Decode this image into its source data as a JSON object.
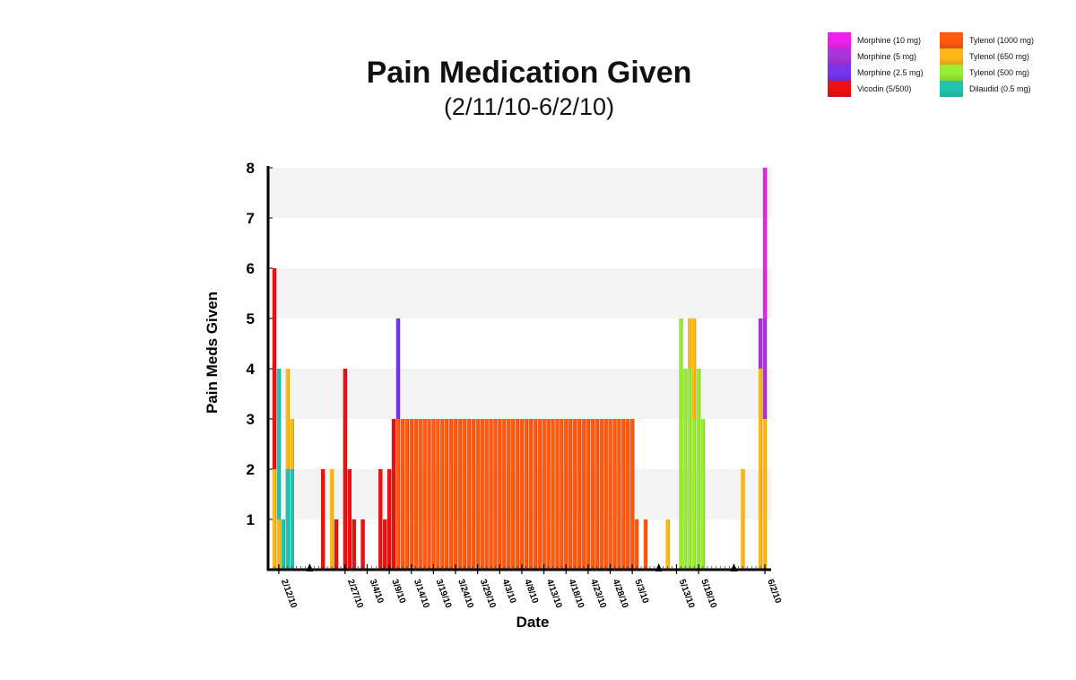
{
  "chart_data": {
    "type": "bar",
    "stacked": true,
    "title": "Pain Medication Given",
    "subtitle": "(2/11/10-6/2/10)",
    "xlabel": "Date",
    "ylabel": "Pain Meds Given",
    "ylim": [
      0,
      8
    ],
    "y_ticks": [
      "1",
      "2",
      "3",
      "4",
      "5",
      "6",
      "7",
      "8"
    ],
    "grid": "alternating horizontal bands",
    "legend_position": "top-right",
    "x_range": [
      "2/11/10",
      "6/2/10"
    ],
    "x_tick_labels": [
      "2/12/10",
      "2/27/10",
      "3/4/10",
      "3/9/10",
      "3/14/10",
      "3/19/10",
      "3/24/10",
      "3/29/10",
      "4/3/10",
      "4/8/10",
      "4/13/10",
      "4/18/10",
      "4/23/10",
      "4/28/10",
      "5/3/10",
      "5/13/10",
      "5/18/10",
      "6/2/10"
    ],
    "axis_break_markers": [
      "2/19/10",
      "5/9/10",
      "5/26/10"
    ],
    "legend": [
      {
        "name": "Morphine (10 mg)",
        "color": "#ee22ee"
      },
      {
        "name": "Morphine (5 mg)",
        "color": "#aa33dd"
      },
      {
        "name": "Morphine (2.5 mg)",
        "color": "#7733ee"
      },
      {
        "name": "Vicodin (5/500)",
        "color": "#ee1111"
      },
      {
        "name": "Tylenol (1000 mg)",
        "color": "#ff5a10"
      },
      {
        "name": "Tylenol (650 mg)",
        "color": "#ffb818"
      },
      {
        "name": "Tylenol (500 mg)",
        "color": "#99ee33"
      },
      {
        "name": "Dilaudid (0.5 mg)",
        "color": "#22c4b0"
      }
    ],
    "bars": [
      {
        "date": "2/11/10",
        "segments": [
          {
            "med": "Tylenol (650 mg)",
            "value": 2
          },
          {
            "med": "Vicodin (5/500)",
            "value": 4
          }
        ]
      },
      {
        "date": "2/12/10",
        "segments": [
          {
            "med": "Tylenol (650 mg)",
            "value": 1
          },
          {
            "med": "Dilaudid (0.5 mg)",
            "value": 3
          }
        ]
      },
      {
        "date": "2/13/10",
        "segments": [
          {
            "med": "Dilaudid (0.5 mg)",
            "value": 1
          }
        ]
      },
      {
        "date": "2/14/10",
        "segments": [
          {
            "med": "Dilaudid (0.5 mg)",
            "value": 2
          },
          {
            "med": "Tylenol (650 mg)",
            "value": 2
          }
        ]
      },
      {
        "date": "2/15/10",
        "segments": [
          {
            "med": "Dilaudid (0.5 mg)",
            "value": 2
          },
          {
            "med": "Tylenol (650 mg)",
            "value": 1
          }
        ]
      },
      {
        "date": "2/22/10",
        "segments": [
          {
            "med": "Vicodin (5/500)",
            "value": 2
          }
        ]
      },
      {
        "date": "2/24/10",
        "segments": [
          {
            "med": "Tylenol (650 mg)",
            "value": 2
          }
        ]
      },
      {
        "date": "2/25/10",
        "segments": [
          {
            "med": "Vicodin (5/500)",
            "value": 1
          }
        ]
      },
      {
        "date": "2/27/10",
        "segments": [
          {
            "med": "Vicodin (5/500)",
            "value": 4
          }
        ]
      },
      {
        "date": "2/28/10",
        "segments": [
          {
            "med": "Vicodin (5/500)",
            "value": 2
          }
        ]
      },
      {
        "date": "3/1/10",
        "segments": [
          {
            "med": "Vicodin (5/500)",
            "value": 1
          }
        ]
      },
      {
        "date": "3/3/10",
        "segments": [
          {
            "med": "Vicodin (5/500)",
            "value": 1
          }
        ]
      },
      {
        "date": "3/7/10",
        "segments": [
          {
            "med": "Vicodin (5/500)",
            "value": 2
          }
        ]
      },
      {
        "date": "3/8/10",
        "segments": [
          {
            "med": "Vicodin (5/500)",
            "value": 1
          }
        ]
      },
      {
        "date": "3/9/10",
        "segments": [
          {
            "med": "Vicodin (5/500)",
            "value": 2
          }
        ]
      },
      {
        "date": "3/10/10",
        "segments": [
          {
            "med": "Vicodin (5/500)",
            "value": 3
          }
        ]
      },
      {
        "date": "3/11/10",
        "segments": [
          {
            "med": "Tylenol (1000 mg)",
            "value": 3
          },
          {
            "med": "Morphine (2.5 mg)",
            "value": 2
          }
        ]
      },
      {
        "date": "3/12/10 – 5/3/10",
        "segments": [
          {
            "med": "Tylenol (1000 mg)",
            "value": 3
          }
        ]
      },
      {
        "date": "5/4/10",
        "segments": [
          {
            "med": "Tylenol (1000 mg)",
            "value": 1
          }
        ]
      },
      {
        "date": "5/6/10",
        "segments": [
          {
            "med": "Tylenol (1000 mg)",
            "value": 1
          }
        ]
      },
      {
        "date": "5/11/10",
        "segments": [
          {
            "med": "Tylenol (650 mg)",
            "value": 1
          }
        ]
      },
      {
        "date": "5/14/10",
        "segments": [
          {
            "med": "Tylenol (500 mg)",
            "value": 5
          }
        ]
      },
      {
        "date": "5/15/10",
        "segments": [
          {
            "med": "Tylenol (500 mg)",
            "value": 4
          }
        ]
      },
      {
        "date": "5/16/10",
        "segments": [
          {
            "med": "Tylenol (500 mg)",
            "value": 4
          },
          {
            "med": "Tylenol (650 mg)",
            "value": 1
          }
        ]
      },
      {
        "date": "5/17/10",
        "segments": [
          {
            "med": "Tylenol (500 mg)",
            "value": 3
          },
          {
            "med": "Tylenol (650 mg)",
            "value": 2
          }
        ]
      },
      {
        "date": "5/18/10",
        "segments": [
          {
            "med": "Tylenol (500 mg)",
            "value": 4
          }
        ]
      },
      {
        "date": "5/19/10",
        "segments": [
          {
            "med": "Tylenol (500 mg)",
            "value": 3
          }
        ]
      },
      {
        "date": "5/28/10",
        "segments": [
          {
            "med": "Tylenol (650 mg)",
            "value": 2
          }
        ]
      },
      {
        "date": "6/1/10",
        "segments": [
          {
            "med": "Tylenol (650 mg)",
            "value": 4
          },
          {
            "med": "Morphine (5 mg)",
            "value": 1
          }
        ]
      },
      {
        "date": "6/2/10",
        "segments": [
          {
            "med": "Tylenol (650 mg)",
            "value": 3
          },
          {
            "med": "Morphine (5 mg)",
            "value": 2
          },
          {
            "med": "Morphine (10 mg)",
            "value": 3
          }
        ]
      }
    ]
  }
}
